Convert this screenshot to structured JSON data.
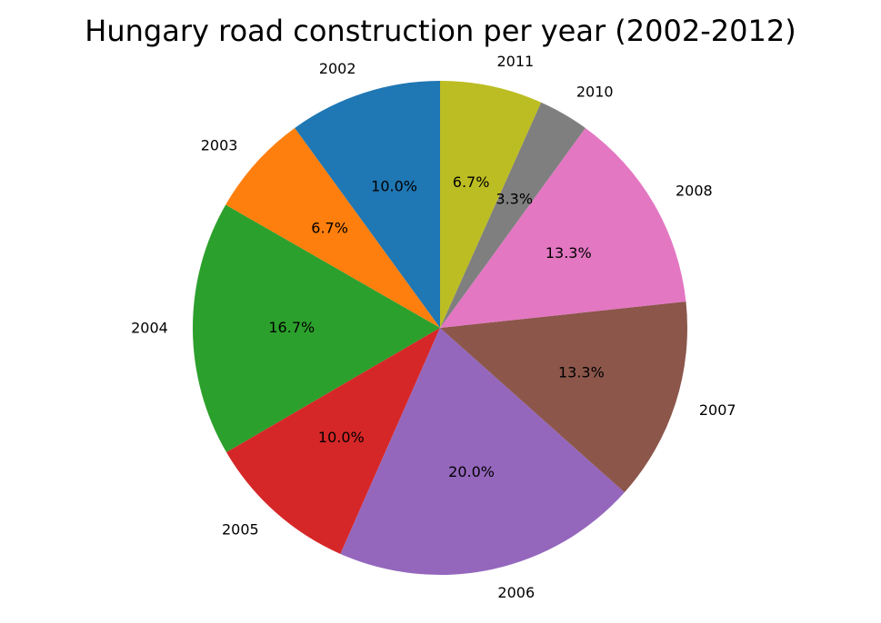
{
  "chart_data": {
    "type": "pie",
    "title": "Hungary road construction per year (2002-2012)",
    "categories": [
      "2002",
      "2003",
      "2004",
      "2005",
      "2006",
      "2007",
      "2008",
      "2010",
      "2011"
    ],
    "values": [
      10.0,
      6.7,
      16.7,
      10.0,
      20.0,
      13.3,
      13.3,
      3.3,
      6.7
    ],
    "percent_labels": [
      "10.0%",
      "6.7%",
      "16.7%",
      "10.0%",
      "20.0%",
      "13.3%",
      "13.3%",
      "3.3%",
      "6.7%"
    ],
    "colors": [
      "#1f77b4",
      "#ff7f0e",
      "#2ca02c",
      "#d62728",
      "#9467bd",
      "#8c564b",
      "#e377c2",
      "#7f7f7f",
      "#bcbd22"
    ],
    "start_angle_deg": 90,
    "direction": "counterclockwise",
    "legend": "none"
  }
}
